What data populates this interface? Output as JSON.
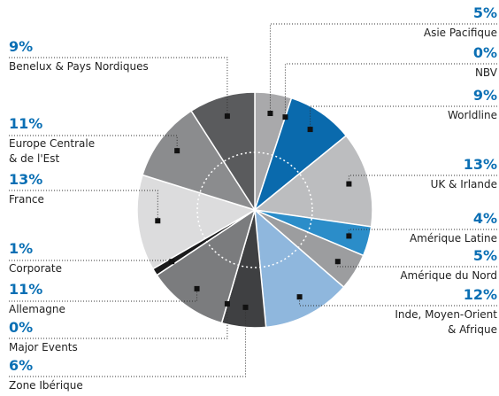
{
  "chart_data": {
    "type": "pie",
    "categories": [
      "Asie Pacifique",
      "NBV",
      "Worldline",
      "UK & Irlande",
      "Amérique Latine",
      "Amérique du Nord",
      "Inde, Moyen-Orient\n& Afrique",
      "Zone Ibérique",
      "Major Events",
      "Allemagne",
      "Corporate",
      "France",
      "Europe Centrale\n& de l'Est",
      "Benelux & Pays Nordiques"
    ],
    "values": [
      5,
      0,
      9,
      13,
      4,
      5,
      12,
      6,
      0,
      11,
      1,
      13,
      11,
      9
    ],
    "value_labels": [
      "5%",
      "0%",
      "9%",
      "13%",
      "4%",
      "5%",
      "12%",
      "6%",
      "0%",
      "11%",
      "1%",
      "13%",
      "11%",
      "9%"
    ],
    "colors": [
      "#a9a9ab",
      "#3a3a3c",
      "#0a6aad",
      "#bcbdbf",
      "#2b8dc9",
      "#9c9d9f",
      "#8fb7dd",
      "#3f4042",
      "#1f1f20",
      "#7b7c7e",
      "#1b1b1c",
      "#dcdcdd",
      "#8b8c8e",
      "#5a5b5d"
    ]
  }
}
